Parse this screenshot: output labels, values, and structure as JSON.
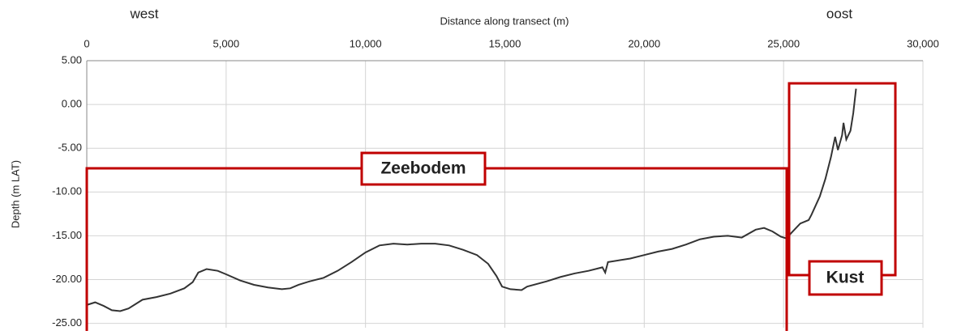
{
  "chart_data": {
    "type": "line",
    "x_axis_label": "Distance along transect (m)",
    "y_axis_label": "Depth (m LAT)",
    "x_axis_position": "top",
    "annotations": [
      "west",
      "oost",
      "Zeebodem",
      "Kust"
    ],
    "color": "#333333",
    "grid": true,
    "xlim": [
      0,
      30000
    ],
    "xticks": [
      0,
      {
        "value": 5000,
        "label": "5,000"
      },
      {
        "value": 10000,
        "label": "10,000"
      },
      {
        "value": 15000,
        "label": "15,000"
      },
      {
        "value": 20000,
        "label": "20,000"
      },
      {
        "value": 25000,
        "label": "25,000"
      },
      {
        "value": 30000,
        "label": "30,000"
      }
    ],
    "ylim": [
      -25.5,
      5
    ],
    "yticks": [
      {
        "value": 5,
        "label": "5.00"
      },
      {
        "value": 0,
        "label": "0.00"
      },
      {
        "value": -5,
        "label": "-5.00"
      },
      {
        "value": -10,
        "label": "-10.00"
      },
      {
        "value": -15,
        "label": "-15.00"
      },
      {
        "value": -20,
        "label": "-20.00"
      },
      {
        "value": -25,
        "label": "-25.00"
      }
    ],
    "x": [
      0,
      300,
      600,
      900,
      1200,
      1500,
      2000,
      2500,
      3000,
      3500,
      3800,
      4000,
      4300,
      4700,
      5000,
      5500,
      6000,
      6500,
      7000,
      7300,
      7600,
      8000,
      8500,
      9000,
      9500,
      10000,
      10500,
      11000,
      11500,
      12000,
      12500,
      13000,
      13500,
      14000,
      14400,
      14700,
      14900,
      15200,
      15600,
      15800,
      16500,
      17000,
      17500,
      18000,
      18500,
      18600,
      18700,
      19500,
      20000,
      20500,
      21000,
      21500,
      22000,
      22500,
      23000,
      23500,
      24000,
      24300,
      24600,
      24900,
      25100,
      25300,
      25600,
      25900,
      26000,
      26300,
      26500,
      26700,
      26850,
      26950,
      27100,
      27150,
      27250,
      27400,
      27500,
      27600
    ],
    "values": [
      -22.9,
      -22.6,
      -23.0,
      -23.5,
      -23.6,
      -23.3,
      -22.3,
      -22.0,
      -21.6,
      -21.0,
      -20.3,
      -19.2,
      -18.8,
      -19.0,
      -19.4,
      -20.1,
      -20.6,
      -20.9,
      -21.1,
      -21.0,
      -20.6,
      -20.2,
      -19.8,
      -19.0,
      -18.0,
      -16.9,
      -16.1,
      -15.9,
      -16.0,
      -15.9,
      -15.9,
      -16.1,
      -16.6,
      -17.2,
      -18.2,
      -19.6,
      -20.8,
      -21.1,
      -21.2,
      -20.8,
      -20.2,
      -19.7,
      -19.3,
      -19.0,
      -18.6,
      -19.2,
      -18.0,
      -17.6,
      -17.2,
      -16.8,
      -16.5,
      -16.0,
      -15.4,
      -15.1,
      -15.0,
      -15.2,
      -14.3,
      -14.1,
      -14.5,
      -15.1,
      -15.3,
      -14.6,
      -13.6,
      -13.2,
      -12.6,
      -10.5,
      -8.5,
      -6.0,
      -3.7,
      -5.2,
      -3.5,
      -2.1,
      -4.0,
      -3.0,
      -1.0,
      1.8
    ]
  }
}
